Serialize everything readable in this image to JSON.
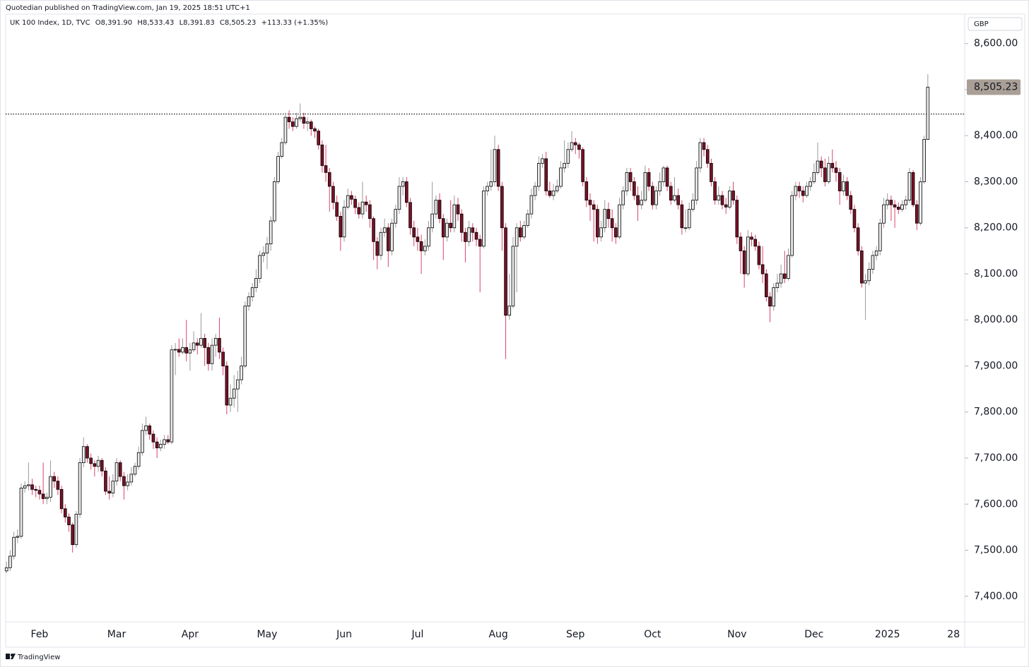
{
  "attribution": "Quotedian published on TradingView.com, Jan 19, 2025 18:51 UTC+1",
  "footer": "TradingView",
  "chart_data": {
    "type": "candlestick",
    "symbol": "UK 100 Index, 1D, TVC",
    "legend_values": [
      "O8,391.90",
      "H8,533.43",
      "L8,391.83",
      "C8,505.23",
      "+113.33 (+1.35%)"
    ],
    "currency": "GBP",
    "up_color": "#ececec",
    "down_color": "#7d1026",
    "up_wick_color": "#9a9a9a",
    "down_wick_color": "#d8456c",
    "body_stroke": "#000000",
    "ylim": [
      7346,
      8667
    ],
    "yticks": [
      {
        "value": 7400,
        "label": "7,400.00"
      },
      {
        "value": 7500,
        "label": "7,500.00"
      },
      {
        "value": 7600,
        "label": "7,600.00"
      },
      {
        "value": 7700,
        "label": "7,700.00"
      },
      {
        "value": 7800,
        "label": "7,800.00"
      },
      {
        "value": 7900,
        "label": "7,900.00"
      },
      {
        "value": 8000,
        "label": "8,000.00"
      },
      {
        "value": 8100,
        "label": "8,100.00"
      },
      {
        "value": 8200,
        "label": "8,200.00"
      },
      {
        "value": 8300,
        "label": "8,300.00"
      },
      {
        "value": 8400,
        "label": "8,400.00"
      },
      {
        "value": 8500,
        "label": "8,500.00"
      },
      {
        "value": 8600,
        "label": "8,600.00"
      }
    ],
    "last_price": {
      "value": 8505.23,
      "label": "8,505.23"
    },
    "reference_line": 8447,
    "categories": [
      null,
      null,
      null,
      null,
      null,
      null,
      null,
      null,
      null,
      "Feb",
      null,
      null,
      null,
      null,
      null,
      null,
      null,
      null,
      null,
      null,
      null,
      null,
      null,
      null,
      null,
      null,
      null,
      null,
      null,
      null,
      "Mar",
      null,
      null,
      null,
      null,
      null,
      null,
      null,
      null,
      null,
      null,
      null,
      null,
      null,
      null,
      null,
      null,
      null,
      null,
      null,
      "Apr",
      null,
      null,
      null,
      null,
      null,
      null,
      null,
      null,
      null,
      null,
      null,
      null,
      null,
      null,
      null,
      null,
      null,
      null,
      null,
      null,
      "May",
      null,
      null,
      null,
      null,
      null,
      null,
      null,
      null,
      null,
      null,
      null,
      null,
      null,
      null,
      null,
      null,
      null,
      null,
      null,
      null,
      "Jun",
      null,
      null,
      null,
      null,
      null,
      null,
      null,
      null,
      null,
      null,
      null,
      null,
      null,
      null,
      null,
      null,
      null,
      null,
      null,
      "Jul",
      null,
      null,
      null,
      null,
      null,
      null,
      null,
      null,
      null,
      null,
      null,
      null,
      null,
      null,
      null,
      null,
      null,
      null,
      null,
      null,
      null,
      "Aug",
      null,
      null,
      null,
      null,
      null,
      null,
      null,
      null,
      null,
      null,
      null,
      null,
      null,
      null,
      null,
      null,
      null,
      null,
      null,
      null,
      "Sep",
      null,
      null,
      null,
      null,
      null,
      null,
      null,
      null,
      null,
      null,
      null,
      null,
      null,
      null,
      null,
      null,
      null,
      null,
      null,
      null,
      "Oct",
      null,
      null,
      null,
      null,
      null,
      null,
      null,
      null,
      null,
      null,
      null,
      null,
      null,
      null,
      null,
      null,
      null,
      null,
      null,
      null,
      null,
      null,
      "Nov",
      null,
      null,
      null,
      null,
      null,
      null,
      null,
      null,
      null,
      null,
      null,
      null,
      null,
      null,
      null,
      null,
      null,
      null,
      null,
      null,
      "Dec",
      null,
      null,
      null,
      null,
      null,
      null,
      null,
      null,
      null,
      null,
      null,
      null,
      null,
      null,
      null,
      null,
      null,
      null,
      null,
      "2025",
      null,
      null,
      null,
      null,
      null,
      null,
      null,
      null,
      null,
      null,
      null,
      null,
      null,
      null,
      null,
      null,
      null,
      "28"
    ],
    "open": [
      7455,
      7462,
      7487,
      7528,
      7530,
      7635,
      7640,
      7642,
      7632,
      7630,
      7622,
      7612,
      7615,
      7660,
      7650,
      7632,
      7590,
      7572,
      7555,
      7512,
      7578,
      7690,
      7725,
      7700,
      7688,
      7682,
      7695,
      7672,
      7628,
      7624,
      7650,
      7690,
      7660,
      7640,
      7648,
      7665,
      7682,
      7712,
      7760,
      7770,
      7752,
      7735,
      7722,
      7730,
      7740,
      7735,
      7935,
      7936,
      7930,
      7940,
      7928,
      7935,
      7950,
      7945,
      7960,
      7940,
      7905,
      7945,
      7960,
      7930,
      7900,
      7815,
      7830,
      7850,
      7870,
      7900,
      8030,
      8050,
      8070,
      8090,
      8140,
      8145,
      8165,
      8215,
      8300,
      8355,
      8385,
      8440,
      8430,
      8420,
      8437,
      8440,
      8427,
      8430,
      8415,
      8410,
      8380,
      8335,
      8320,
      8290,
      8255,
      8225,
      8180,
      8245,
      8270,
      8262,
      8244,
      8230,
      8256,
      8250,
      8220,
      8170,
      8140,
      8190,
      8200,
      8150,
      8210,
      8240,
      8290,
      8300,
      8255,
      8200,
      8180,
      8170,
      8150,
      8160,
      8200,
      8230,
      8260,
      8220,
      8180,
      8210,
      8200,
      8250,
      8230,
      8190,
      8170,
      8200,
      8190,
      8175,
      8160,
      8280,
      8290,
      8300,
      8370,
      8290,
      8200,
      8010,
      8030,
      8160,
      8200,
      8180,
      8205,
      8230,
      8270,
      8290,
      8340,
      8350,
      8280,
      8270,
      8280,
      8290,
      8330,
      8340,
      8370,
      8385,
      8380,
      8370,
      8300,
      8260,
      8250,
      8240,
      8180,
      8200,
      8240,
      8220,
      8200,
      8180,
      8250,
      8280,
      8320,
      8300,
      8270,
      8250,
      8260,
      8320,
      8290,
      8250,
      8280,
      8300,
      8330,
      8290,
      8260,
      8270,
      8250,
      8200,
      8200,
      8240,
      8260,
      8330,
      8385,
      8370,
      8340,
      8300,
      8260,
      8270,
      8250,
      8245,
      8280,
      8260,
      8180,
      8150,
      8100,
      8180,
      8175,
      8160,
      8120,
      8100,
      8050,
      8030,
      8070,
      8080,
      8100,
      8090,
      8140,
      8270,
      8290,
      8280,
      8270,
      8290,
      8300,
      8320,
      8345,
      8330,
      8300,
      8340,
      8330,
      8320,
      8280,
      8300,
      8270,
      8240,
      8200,
      8150,
      8080,
      8085,
      8110,
      8140,
      8150,
      8210,
      8250,
      8260,
      8250,
      8245,
      8240,
      8250,
      8260,
      8320,
      8250,
      8210,
      8300,
      8391.9,
      null,
      null,
      null,
      null,
      null,
      null,
      null
    ],
    "high": [
      7475,
      7500,
      7540,
      7545,
      7645,
      7650,
      7690,
      7655,
      7640,
      7640,
      7690,
      7625,
      7695,
      7670,
      7660,
      7640,
      7600,
      7580,
      7560,
      7585,
      7700,
      7745,
      7730,
      7710,
      7695,
      7705,
      7700,
      7680,
      7660,
      7665,
      7700,
      7695,
      7670,
      7665,
      7680,
      7690,
      7725,
      7775,
      7790,
      7775,
      7760,
      7745,
      7740,
      7750,
      7750,
      7945,
      7950,
      7960,
      7960,
      8000,
      7950,
      7975,
      7960,
      8015,
      7970,
      7950,
      7960,
      7970,
      8005,
      7940,
      7910,
      7860,
      7880,
      7890,
      7920,
      8040,
      8060,
      8080,
      8110,
      8150,
      8160,
      8180,
      8225,
      8310,
      8365,
      8395,
      8450,
      8455,
      8440,
      8450,
      8470,
      8450,
      8440,
      8435,
      8420,
      8415,
      8390,
      8380,
      8330,
      8300,
      8270,
      8235,
      8260,
      8285,
      8280,
      8270,
      8255,
      8300,
      8270,
      8260,
      8225,
      8180,
      8200,
      8220,
      8210,
      8220,
      8250,
      8310,
      8310,
      8310,
      8265,
      8215,
      8200,
      8185,
      8175,
      8215,
      8300,
      8270,
      8275,
      8230,
      8220,
      8260,
      8270,
      8265,
      8240,
      8200,
      8215,
      8210,
      8200,
      8185,
      8290,
      8300,
      8370,
      8400,
      8380,
      8300,
      8210,
      8100,
      8180,
      8210,
      8215,
      8215,
      8240,
      8285,
      8300,
      8355,
      8360,
      8365,
      8300,
      8295,
      8305,
      8345,
      8390,
      8385,
      8410,
      8395,
      8385,
      8375,
      8310,
      8275,
      8260,
      8250,
      8215,
      8260,
      8255,
      8240,
      8210,
      8265,
      8290,
      8330,
      8330,
      8310,
      8290,
      8280,
      8335,
      8330,
      8300,
      8290,
      8320,
      8335,
      8335,
      8300,
      8310,
      8285,
      8260,
      8240,
      8255,
      8275,
      8345,
      8395,
      8395,
      8380,
      8350,
      8310,
      8290,
      8280,
      8265,
      8290,
      8300,
      8270,
      8190,
      8160,
      8195,
      8190,
      8185,
      8170,
      8160,
      8110,
      8060,
      8080,
      8100,
      8120,
      8150,
      8155,
      8280,
      8300,
      8300,
      8290,
      8300,
      8310,
      8340,
      8385,
      8355,
      8350,
      8355,
      8370,
      8345,
      8330,
      8315,
      8310,
      8280,
      8250,
      8210,
      8160,
      8100,
      8125,
      8150,
      8160,
      8220,
      8265,
      8275,
      8270,
      8260,
      8255,
      8260,
      8270,
      8330,
      8325,
      8260,
      8310,
      8400,
      8533.43,
      null,
      null,
      null,
      null,
      null,
      null,
      null
    ],
    "low": [
      7450,
      7455,
      7480,
      7515,
      7525,
      7625,
      7630,
      7620,
      7615,
      7610,
      7600,
      7600,
      7605,
      7635,
      7620,
      7580,
      7560,
      7540,
      7495,
      7505,
      7570,
      7680,
      7690,
      7675,
      7660,
      7670,
      7660,
      7620,
      7610,
      7615,
      7640,
      7650,
      7610,
      7630,
      7640,
      7660,
      7675,
      7705,
      7750,
      7740,
      7720,
      7700,
      7715,
      7720,
      7730,
      7730,
      7880,
      7920,
      7925,
      7910,
      7890,
      7930,
      7925,
      7940,
      7900,
      7890,
      7890,
      7920,
      7915,
      7880,
      7795,
      7800,
      7810,
      7800,
      7860,
      7895,
      8020,
      8040,
      8060,
      8080,
      8125,
      8110,
      8150,
      8210,
      8295,
      8350,
      8380,
      8415,
      8410,
      8415,
      8430,
      8415,
      8410,
      8400,
      8395,
      8370,
      8320,
      8300,
      8235,
      8240,
      8215,
      8150,
      8170,
      8240,
      8250,
      8230,
      8220,
      8220,
      8235,
      8200,
      8130,
      8110,
      8130,
      8180,
      8115,
      8140,
      8200,
      8230,
      8270,
      8245,
      8185,
      8160,
      8150,
      8100,
      8140,
      8150,
      8190,
      8220,
      8210,
      8130,
      8170,
      8190,
      8190,
      8215,
      8170,
      8125,
      8160,
      8170,
      8160,
      8060,
      8155,
      8270,
      8280,
      8290,
      8280,
      8150,
      7915,
      8000,
      8025,
      8060,
      8170,
      8175,
      8200,
      8220,
      8260,
      8280,
      8330,
      8270,
      8265,
      8260,
      8275,
      8285,
      8320,
      8330,
      8365,
      8360,
      8350,
      8290,
      8245,
      8215,
      8170,
      8165,
      8170,
      8190,
      8200,
      8170,
      8165,
      8175,
      8240,
      8270,
      8280,
      8260,
      8215,
      8240,
      8255,
      8280,
      8240,
      8240,
      8270,
      8290,
      8280,
      8250,
      8255,
      8240,
      8185,
      8190,
      8195,
      8235,
      8250,
      8320,
      8355,
      8330,
      8290,
      8250,
      8250,
      8240,
      8230,
      8240,
      8250,
      8165,
      8100,
      8070,
      8095,
      8160,
      8150,
      8110,
      8080,
      8040,
      7995,
      8020,
      8060,
      8070,
      8080,
      8085,
      8135,
      8260,
      8265,
      8255,
      8265,
      8280,
      8295,
      8315,
      8310,
      8290,
      8295,
      8320,
      8300,
      8250,
      8270,
      8260,
      8230,
      8190,
      8140,
      8070,
      8000,
      8075,
      8100,
      8130,
      8140,
      8200,
      8240,
      8215,
      8200,
      8230,
      8235,
      8240,
      8255,
      8245,
      8195,
      8205,
      8295,
      8391.83,
      null,
      null,
      null,
      null,
      null,
      null,
      null
    ],
    "close": [
      7462,
      7487,
      7528,
      7530,
      7635,
      7640,
      7642,
      7632,
      7630,
      7622,
      7612,
      7615,
      7660,
      7650,
      7632,
      7590,
      7572,
      7555,
      7512,
      7578,
      7690,
      7725,
      7700,
      7688,
      7682,
      7695,
      7672,
      7628,
      7624,
      7650,
      7690,
      7660,
      7640,
      7648,
      7665,
      7682,
      7712,
      7760,
      7770,
      7752,
      7735,
      7722,
      7730,
      7740,
      7735,
      7935,
      7936,
      7930,
      7940,
      7928,
      7935,
      7950,
      7945,
      7960,
      7940,
      7905,
      7945,
      7960,
      7930,
      7900,
      7815,
      7830,
      7850,
      7870,
      7900,
      8030,
      8050,
      8070,
      8090,
      8140,
      8145,
      8165,
      8215,
      8300,
      8355,
      8385,
      8440,
      8430,
      8420,
      8437,
      8440,
      8427,
      8430,
      8415,
      8410,
      8380,
      8335,
      8320,
      8290,
      8255,
      8225,
      8180,
      8245,
      8270,
      8262,
      8244,
      8230,
      8256,
      8250,
      8220,
      8170,
      8140,
      8190,
      8200,
      8150,
      8210,
      8240,
      8290,
      8300,
      8255,
      8200,
      8180,
      8170,
      8150,
      8160,
      8200,
      8230,
      8260,
      8220,
      8180,
      8210,
      8200,
      8250,
      8230,
      8190,
      8170,
      8200,
      8190,
      8175,
      8160,
      8280,
      8290,
      8300,
      8370,
      8290,
      8200,
      8010,
      8030,
      8160,
      8200,
      8180,
      8205,
      8230,
      8270,
      8290,
      8340,
      8350,
      8280,
      8270,
      8280,
      8290,
      8330,
      8340,
      8370,
      8385,
      8380,
      8370,
      8300,
      8260,
      8250,
      8240,
      8180,
      8200,
      8240,
      8220,
      8200,
      8180,
      8250,
      8280,
      8320,
      8300,
      8270,
      8250,
      8260,
      8320,
      8290,
      8250,
      8280,
      8300,
      8330,
      8290,
      8260,
      8270,
      8250,
      8200,
      8200,
      8240,
      8260,
      8330,
      8385,
      8370,
      8340,
      8300,
      8260,
      8270,
      8250,
      8245,
      8280,
      8260,
      8180,
      8150,
      8100,
      8180,
      8175,
      8160,
      8120,
      8100,
      8050,
      8030,
      8070,
      8080,
      8100,
      8090,
      8140,
      8270,
      8290,
      8280,
      8270,
      8290,
      8300,
      8320,
      8345,
      8330,
      8300,
      8340,
      8330,
      8320,
      8280,
      8300,
      8270,
      8240,
      8200,
      8150,
      8080,
      8085,
      8110,
      8140,
      8150,
      8210,
      8250,
      8260,
      8250,
      8245,
      8240,
      8250,
      8260,
      8320,
      8250,
      8210,
      8300,
      8391.9,
      8505.23,
      null,
      null,
      null,
      null,
      null,
      null,
      null
    ]
  }
}
